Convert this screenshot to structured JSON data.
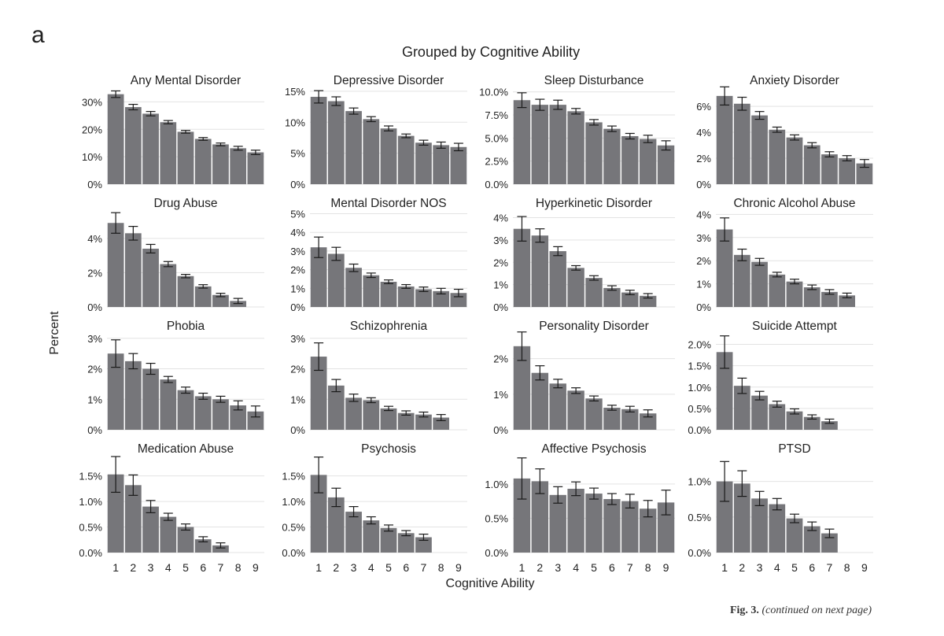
{
  "panel_label": "a",
  "figure_title": "Grouped by Cognitive Ability",
  "xlabel": "Cognitive Ability",
  "ylabel": "Percent",
  "caption": {
    "fig": "Fig. 3.",
    "continued": "(continued on next page)"
  },
  "colors": {
    "bar": "#76767a",
    "grid": "#e3e3e3",
    "axis": "#222222"
  },
  "chart_data": [
    {
      "type": "bar",
      "title": "Any Mental Disorder",
      "categories": [
        "1",
        "2",
        "3",
        "4",
        "5",
        "6",
        "7",
        "8",
        "9"
      ],
      "values": [
        32.8,
        28.1,
        25.7,
        22.6,
        19.1,
        16.5,
        14.5,
        13.1,
        11.6
      ],
      "errors": [
        1.2,
        1.0,
        0.8,
        0.6,
        0.5,
        0.5,
        0.5,
        0.7,
        0.8
      ],
      "ylim": [
        0,
        35
      ],
      "ticks": [
        "0%",
        "10%",
        "20%",
        "30%"
      ],
      "tick_values": [
        0,
        10,
        20,
        30
      ]
    },
    {
      "type": "bar",
      "title": "Depressive Disorder",
      "categories": [
        "1",
        "2",
        "3",
        "4",
        "5",
        "6",
        "7",
        "8",
        "9"
      ],
      "values": [
        14.1,
        13.4,
        11.8,
        10.5,
        9.0,
        7.8,
        6.7,
        6.3,
        6.0
      ],
      "errors": [
        1.0,
        0.7,
        0.5,
        0.4,
        0.4,
        0.3,
        0.4,
        0.5,
        0.6
      ],
      "ylim": [
        0,
        15.5
      ],
      "ticks": [
        "0%",
        "5%",
        "10%",
        "15%"
      ],
      "tick_values": [
        0,
        5,
        10,
        15
      ]
    },
    {
      "type": "bar",
      "title": "Sleep Disturbance",
      "categories": [
        "1",
        "2",
        "3",
        "4",
        "5",
        "6",
        "7",
        "8",
        "9"
      ],
      "values": [
        9.1,
        8.6,
        8.6,
        7.9,
        6.7,
        6.0,
        5.2,
        4.9,
        4.2
      ],
      "errors": [
        0.8,
        0.6,
        0.5,
        0.3,
        0.3,
        0.3,
        0.3,
        0.4,
        0.5
      ],
      "ylim": [
        0,
        10.4
      ],
      "ticks": [
        "0.0%",
        "2.5%",
        "5.0%",
        "7.5%",
        "10.0%"
      ],
      "tick_values": [
        0,
        2.5,
        5,
        7.5,
        10
      ]
    },
    {
      "type": "bar",
      "title": "Anxiety Disorder",
      "categories": [
        "1",
        "2",
        "3",
        "4",
        "5",
        "6",
        "7",
        "8",
        "9"
      ],
      "values": [
        6.8,
        6.2,
        5.3,
        4.2,
        3.6,
        3.0,
        2.3,
        2.0,
        1.6
      ],
      "errors": [
        0.7,
        0.5,
        0.3,
        0.2,
        0.2,
        0.2,
        0.2,
        0.2,
        0.3
      ],
      "ylim": [
        0,
        7.4
      ],
      "ticks": [
        "0%",
        "2%",
        "4%",
        "6%"
      ],
      "tick_values": [
        0,
        2,
        4,
        6
      ]
    },
    {
      "type": "bar",
      "title": "Drug Abuse",
      "categories": [
        "1",
        "2",
        "3",
        "4",
        "5",
        "6",
        "7",
        "8",
        "9"
      ],
      "values": [
        4.9,
        4.3,
        3.4,
        2.5,
        1.8,
        1.2,
        0.7,
        0.35,
        null
      ],
      "errors": [
        0.6,
        0.4,
        0.25,
        0.15,
        0.1,
        0.1,
        0.1,
        0.15,
        null
      ],
      "ylim": [
        0,
        5.6
      ],
      "ticks": [
        "0%",
        "2%",
        "4%"
      ],
      "tick_values": [
        0,
        2,
        4
      ]
    },
    {
      "type": "bar",
      "title": "Mental Disorder NOS",
      "categories": [
        "1",
        "2",
        "3",
        "4",
        "5",
        "6",
        "7",
        "8",
        "9"
      ],
      "values": [
        3.2,
        2.85,
        2.1,
        1.7,
        1.35,
        1.1,
        0.95,
        0.85,
        0.75
      ],
      "errors": [
        0.55,
        0.35,
        0.2,
        0.12,
        0.1,
        0.1,
        0.12,
        0.15,
        0.2
      ],
      "ylim": [
        0,
        5.15
      ],
      "ticks": [
        "0%",
        "1%",
        "2%",
        "3%",
        "4%",
        "5%"
      ],
      "tick_values": [
        0,
        1,
        2,
        3,
        4,
        5
      ]
    },
    {
      "type": "bar",
      "title": "Hyperkinetic Disorder",
      "categories": [
        "1",
        "2",
        "3",
        "4",
        "5",
        "6",
        "7",
        "8",
        "9"
      ],
      "values": [
        3.5,
        3.2,
        2.5,
        1.75,
        1.3,
        0.85,
        0.65,
        0.5,
        null
      ],
      "errors": [
        0.55,
        0.3,
        0.2,
        0.1,
        0.1,
        0.1,
        0.1,
        0.1,
        null
      ],
      "ylim": [
        0,
        4.3
      ],
      "ticks": [
        "0%",
        "1%",
        "2%",
        "3%",
        "4%"
      ],
      "tick_values": [
        0,
        1,
        2,
        3,
        4
      ]
    },
    {
      "type": "bar",
      "title": "Chronic Alcohol Abuse",
      "categories": [
        "1",
        "2",
        "3",
        "4",
        "5",
        "6",
        "7",
        "8",
        "9"
      ],
      "values": [
        3.35,
        2.25,
        1.95,
        1.4,
        1.1,
        0.85,
        0.65,
        0.5,
        null
      ],
      "errors": [
        0.5,
        0.25,
        0.15,
        0.1,
        0.1,
        0.1,
        0.1,
        0.1,
        null
      ],
      "ylim": [
        0,
        4.15
      ],
      "ticks": [
        "0%",
        "1%",
        "2%",
        "3%",
        "4%"
      ],
      "tick_values": [
        0,
        1,
        2,
        3,
        4
      ]
    },
    {
      "type": "bar",
      "title": "Phobia",
      "categories": [
        "1",
        "2",
        "3",
        "4",
        "5",
        "6",
        "7",
        "8",
        "9"
      ],
      "values": [
        2.5,
        2.25,
        2.0,
        1.65,
        1.3,
        1.1,
        1.0,
        0.8,
        0.6
      ],
      "errors": [
        0.45,
        0.25,
        0.18,
        0.1,
        0.1,
        0.1,
        0.1,
        0.15,
        0.18
      ],
      "ylim": [
        0,
        3.15
      ],
      "ticks": [
        "0%",
        "1%",
        "2%",
        "3%"
      ],
      "tick_values": [
        0,
        1,
        2,
        3
      ]
    },
    {
      "type": "bar",
      "title": "Schizophrenia",
      "categories": [
        "1",
        "2",
        "3",
        "4",
        "5",
        "6",
        "7",
        "8",
        "9"
      ],
      "values": [
        2.4,
        1.45,
        1.05,
        0.97,
        0.7,
        0.55,
        0.5,
        0.4,
        null
      ],
      "errors": [
        0.45,
        0.2,
        0.12,
        0.08,
        0.07,
        0.07,
        0.08,
        0.1,
        null
      ],
      "ylim": [
        0,
        3.15
      ],
      "ticks": [
        "0%",
        "1%",
        "2%",
        "3%"
      ],
      "tick_values": [
        0,
        1,
        2,
        3
      ]
    },
    {
      "type": "bar",
      "title": "Personality Disorder",
      "categories": [
        "1",
        "2",
        "3",
        "4",
        "5",
        "6",
        "7",
        "8",
        "9"
      ],
      "values": [
        2.35,
        1.6,
        1.3,
        1.1,
        0.88,
        0.62,
        0.58,
        0.46,
        null
      ],
      "errors": [
        0.4,
        0.2,
        0.12,
        0.08,
        0.07,
        0.07,
        0.08,
        0.1,
        null
      ],
      "ylim": [
        0,
        2.7
      ],
      "ticks": [
        "0%",
        "1%",
        "2%"
      ],
      "tick_values": [
        0,
        1,
        2
      ]
    },
    {
      "type": "bar",
      "title": "Suicide Attempt",
      "categories": [
        "1",
        "2",
        "3",
        "4",
        "5",
        "6",
        "7",
        "8",
        "9"
      ],
      "values": [
        1.82,
        1.03,
        0.8,
        0.6,
        0.43,
        0.3,
        0.2,
        null,
        null
      ],
      "errors": [
        0.38,
        0.18,
        0.1,
        0.07,
        0.06,
        0.05,
        0.05,
        null,
        null
      ],
      "ylim": [
        0,
        2.25
      ],
      "ticks": [
        "0.0%",
        "0.5%",
        "1.0%",
        "1.5%",
        "2.0%"
      ],
      "tick_values": [
        0,
        0.5,
        1.0,
        1.5,
        2.0
      ]
    },
    {
      "type": "bar",
      "title": "Medication Abuse",
      "categories": [
        "1",
        "2",
        "3",
        "4",
        "5",
        "6",
        "7",
        "8",
        "9"
      ],
      "values": [
        1.53,
        1.32,
        0.9,
        0.7,
        0.5,
        0.26,
        0.14,
        null,
        null
      ],
      "errors": [
        0.35,
        0.2,
        0.12,
        0.07,
        0.06,
        0.05,
        0.05,
        null,
        null
      ],
      "ylim": [
        0,
        1.88
      ],
      "ticks": [
        "0.0%",
        "0.5%",
        "1.0%",
        "1.5%"
      ],
      "tick_values": [
        0,
        0.5,
        1.0,
        1.5
      ]
    },
    {
      "type": "bar",
      "title": "Psychosis",
      "categories": [
        "1",
        "2",
        "3",
        "4",
        "5",
        "6",
        "7",
        "8",
        "9"
      ],
      "values": [
        1.52,
        1.08,
        0.8,
        0.63,
        0.48,
        0.38,
        0.3,
        null,
        null
      ],
      "errors": [
        0.35,
        0.18,
        0.1,
        0.07,
        0.06,
        0.05,
        0.06,
        null,
        null
      ],
      "ylim": [
        0,
        1.88
      ],
      "ticks": [
        "0.0%",
        "0.5%",
        "1.0%",
        "1.5%"
      ],
      "tick_values": [
        0,
        0.5,
        1.0,
        1.5
      ]
    },
    {
      "type": "bar",
      "title": "Affective Psychosis",
      "categories": [
        "1",
        "2",
        "3",
        "4",
        "5",
        "6",
        "7",
        "8",
        "9"
      ],
      "values": [
        1.08,
        1.04,
        0.84,
        0.93,
        0.86,
        0.78,
        0.75,
        0.64,
        0.73
      ],
      "errors": [
        0.3,
        0.18,
        0.12,
        0.1,
        0.08,
        0.08,
        0.1,
        0.12,
        0.18
      ],
      "ylim": [
        0,
        1.4
      ],
      "ticks": [
        "0.0%",
        "0.5%",
        "1.0%"
      ],
      "tick_values": [
        0,
        0.5,
        1.0
      ]
    },
    {
      "type": "bar",
      "title": "PTSD",
      "categories": [
        "1",
        "2",
        "3",
        "4",
        "5",
        "6",
        "7",
        "8",
        "9"
      ],
      "values": [
        1.0,
        0.97,
        0.76,
        0.68,
        0.48,
        0.37,
        0.27,
        null,
        null
      ],
      "errors": [
        0.28,
        0.18,
        0.1,
        0.08,
        0.06,
        0.06,
        0.06,
        null,
        null
      ],
      "ylim": [
        0,
        1.35
      ],
      "ticks": [
        "0.0%",
        "0.5%",
        "1.0%"
      ],
      "tick_values": [
        0,
        0.5,
        1.0
      ]
    }
  ]
}
